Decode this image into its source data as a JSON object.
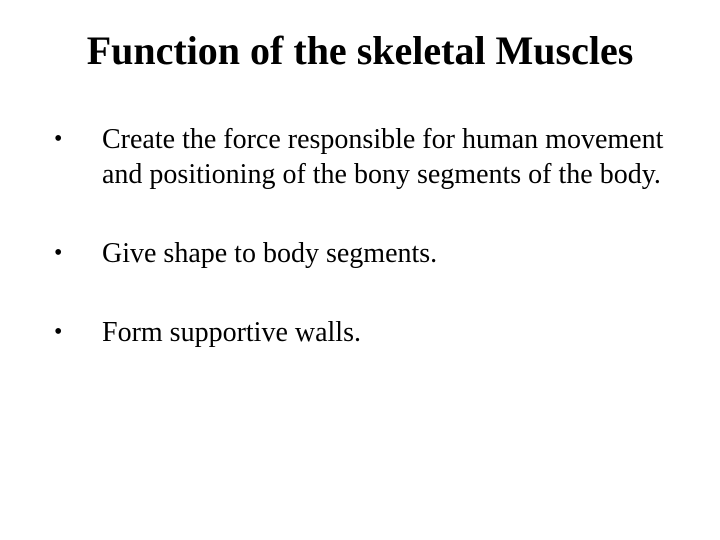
{
  "slide": {
    "title": "Function of the skeletal Muscles",
    "title_fontsize": 40,
    "title_weight": "bold",
    "title_color": "#000000",
    "body_fontsize": 28,
    "body_color": "#000000",
    "background_color": "#ffffff",
    "font_family": "Times New Roman",
    "bullet_char": "•",
    "bullets": [
      {
        "text": "Create the force responsible for human movement and positioning of the bony segments of the body."
      },
      {
        "text": "Give shape to body segments."
      },
      {
        "text": "Form supportive walls."
      }
    ]
  }
}
